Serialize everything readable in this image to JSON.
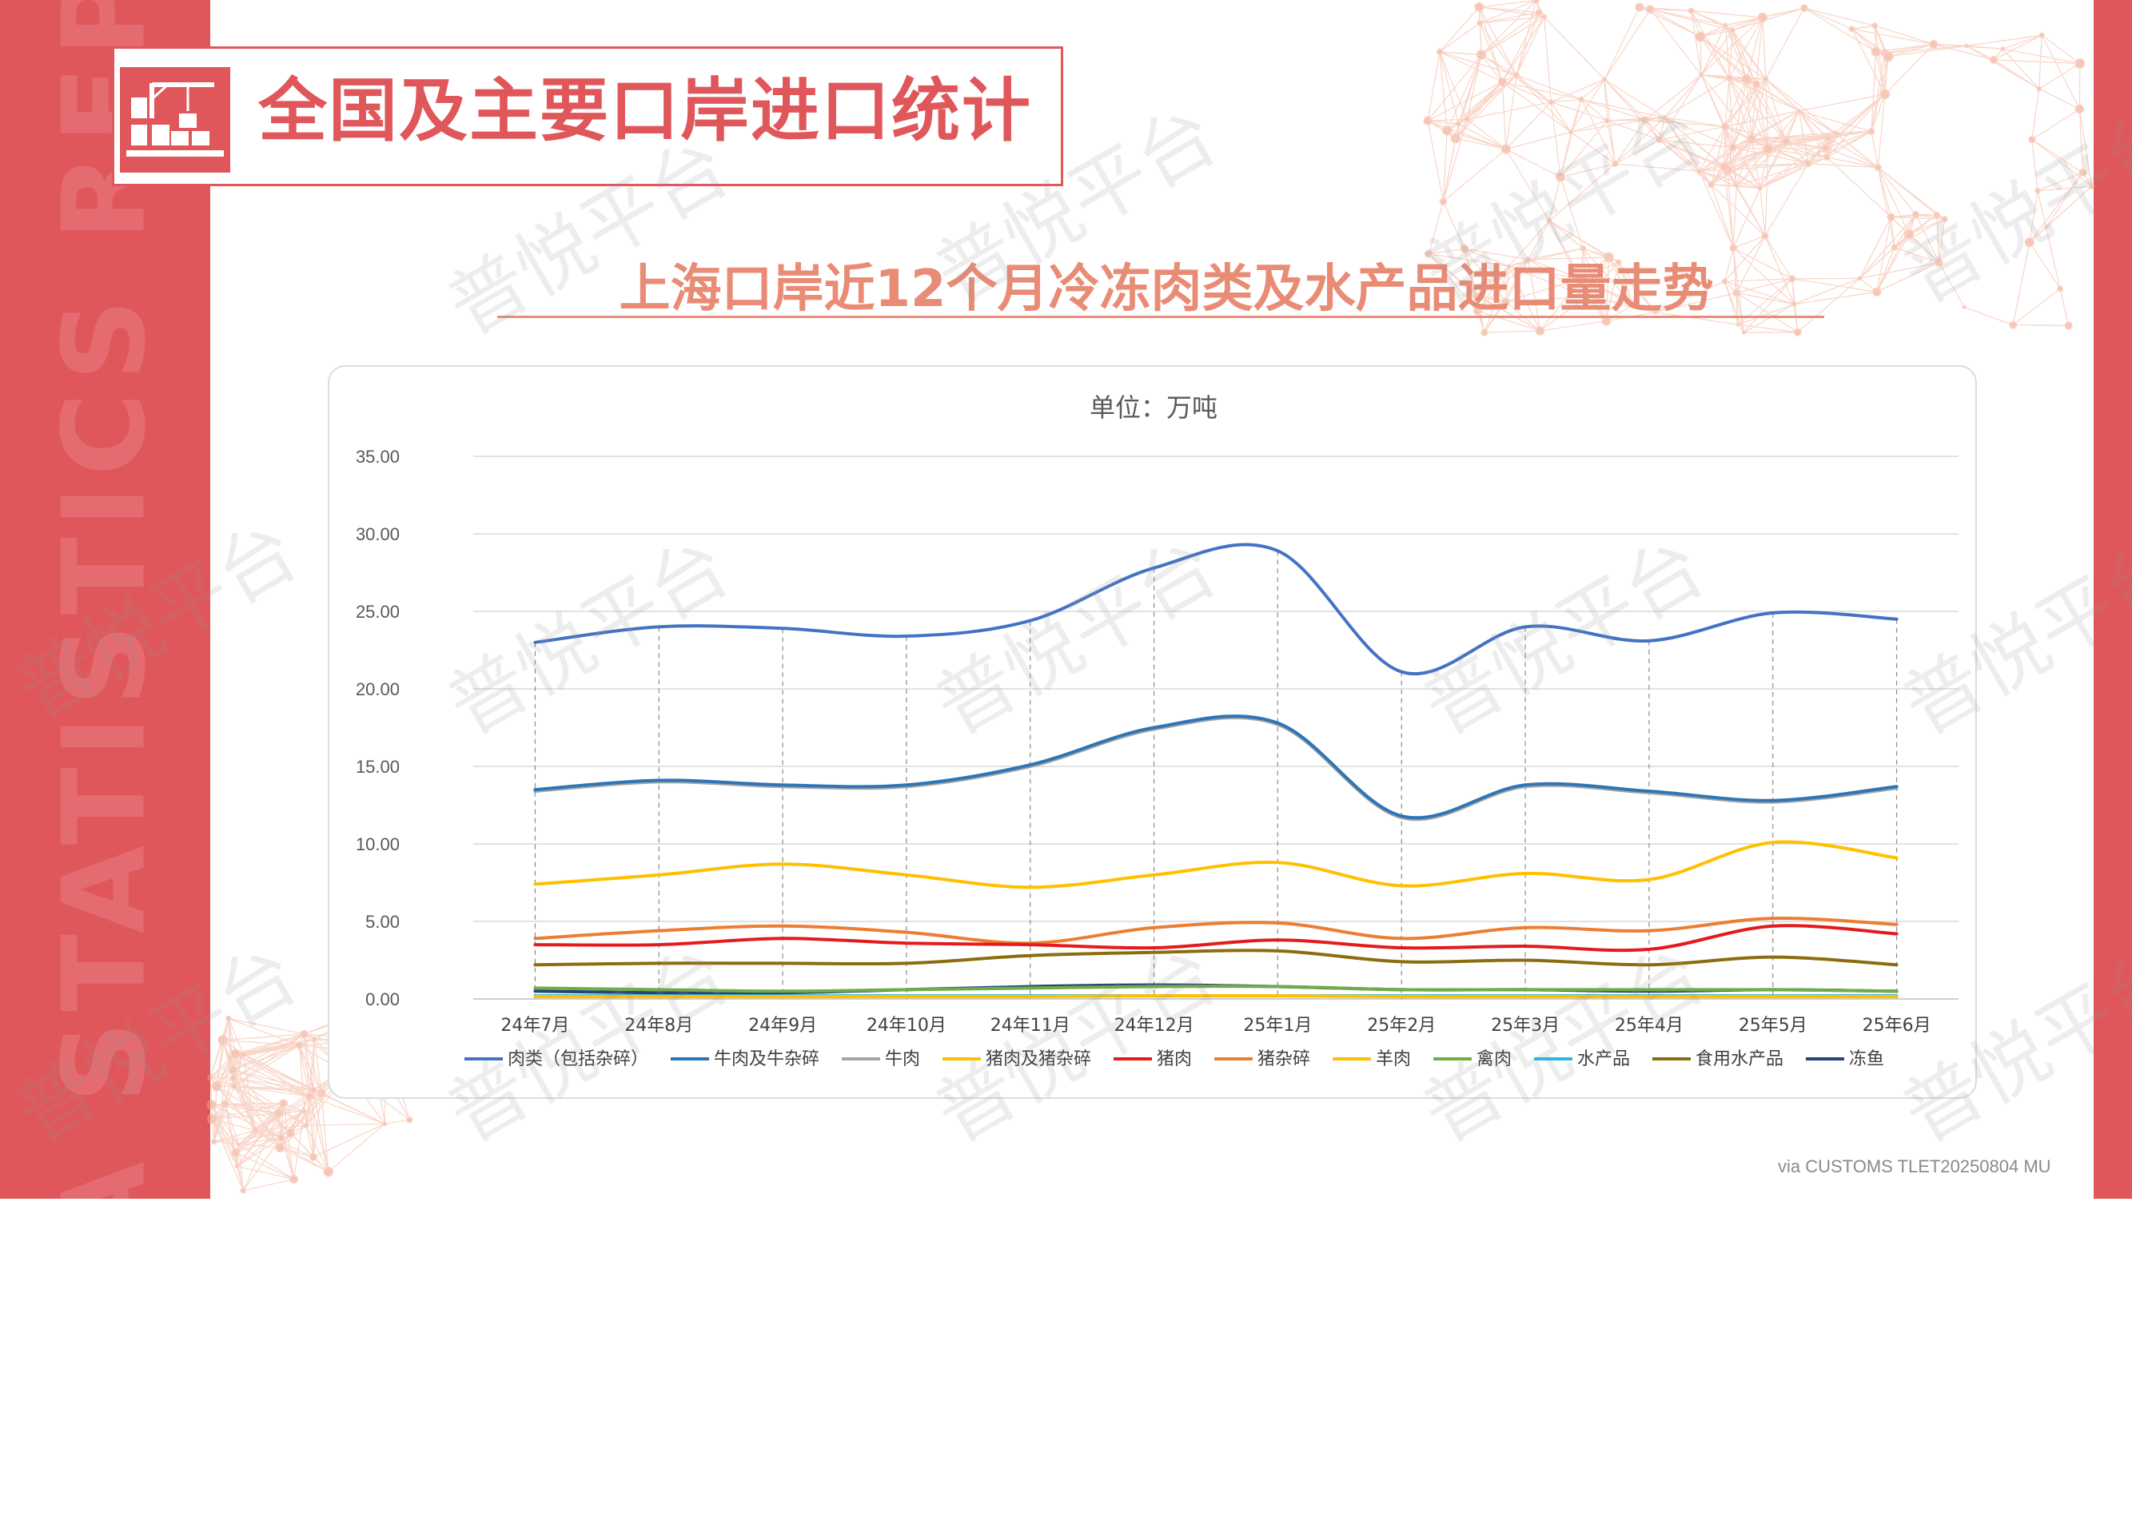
{
  "page": {
    "side_banner": "DATA STATISTICS REPORT",
    "header_title": "全国及主要口岸进口统计",
    "subtitle": "上海口岸近12个月冷冻肉类及水产品进口量走势",
    "watermark": "普悦平台",
    "source_note": "via CUSTOMS TLET20250804 MU",
    "icon": "warehouse-crane-icon"
  },
  "colors": {
    "accent": "#e0575b",
    "subtitle": "#e98c76",
    "grid": "#d9d9d9",
    "axis_text": "#595959"
  },
  "chart_data": {
    "type": "line",
    "smooth": true,
    "title": "单位：万吨",
    "xlabel": "",
    "ylabel": "",
    "ylim": [
      0,
      35
    ],
    "yticks": [
      "0.00",
      "5.00",
      "10.00",
      "15.00",
      "20.00",
      "25.00",
      "30.00",
      "35.00"
    ],
    "categories": [
      "24年7月",
      "24年8月",
      "24年9月",
      "24年10月",
      "24年11月",
      "24年12月",
      "25年1月",
      "25年2月",
      "25年3月",
      "25年4月",
      "25年5月",
      "25年6月"
    ],
    "grid": true,
    "vertical_drop_lines": true,
    "legend_position": "bottom",
    "series": [
      {
        "name": "肉类（包括杂碎）",
        "color": "#4472c4",
        "values": [
          23.0,
          24.0,
          23.9,
          23.4,
          24.4,
          27.8,
          28.9,
          21.1,
          24.0,
          23.1,
          24.9,
          24.5
        ]
      },
      {
        "name": "牛肉及牛杂碎",
        "color": "#2e75b6",
        "values": [
          13.5,
          14.1,
          13.8,
          13.8,
          15.1,
          17.5,
          17.8,
          11.8,
          13.8,
          13.4,
          12.8,
          13.7
        ]
      },
      {
        "name": "牛肉",
        "color": "#a5a5a5",
        "values": [
          13.4,
          14.0,
          13.7,
          13.7,
          15.0,
          17.4,
          17.7,
          11.7,
          13.7,
          13.3,
          12.7,
          13.6
        ]
      },
      {
        "name": "猪肉及猪杂碎",
        "color": "#ffc000",
        "values": [
          7.4,
          8.0,
          8.7,
          8.0,
          7.2,
          8.0,
          8.8,
          7.3,
          8.1,
          7.7,
          10.1,
          9.1
        ]
      },
      {
        "name": "猪肉",
        "color": "#e41a1c",
        "values": [
          3.5,
          3.5,
          3.9,
          3.6,
          3.5,
          3.3,
          3.8,
          3.3,
          3.4,
          3.2,
          4.7,
          4.2
        ]
      },
      {
        "name": "猪杂碎",
        "color": "#ed7d31",
        "values": [
          3.9,
          4.4,
          4.7,
          4.3,
          3.6,
          4.6,
          4.9,
          3.9,
          4.6,
          4.4,
          5.2,
          4.8
        ]
      },
      {
        "name": "羊肉",
        "color": "#ffc000",
        "values": [
          0.15,
          0.15,
          0.15,
          0.15,
          0.15,
          0.2,
          0.2,
          0.15,
          0.15,
          0.15,
          0.15,
          0.15
        ]
      },
      {
        "name": "禽肉",
        "color": "#70ad47",
        "values": [
          0.7,
          0.6,
          0.5,
          0.6,
          0.7,
          0.8,
          0.8,
          0.6,
          0.6,
          0.6,
          0.6,
          0.5
        ]
      },
      {
        "name": "水产品",
        "color": "#29b6e8",
        "values": [
          0.2,
          0.2,
          0.2,
          0.2,
          0.2,
          0.2,
          0.2,
          0.2,
          0.2,
          0.2,
          0.2,
          0.2
        ]
      },
      {
        "name": "食用水产品",
        "color": "#8b6d0f",
        "values": [
          2.2,
          2.3,
          2.3,
          2.3,
          2.8,
          3.0,
          3.1,
          2.4,
          2.5,
          2.2,
          2.7,
          2.2
        ]
      },
      {
        "name": "冻鱼",
        "color": "#264478",
        "values": [
          0.5,
          0.4,
          0.4,
          0.6,
          0.8,
          0.9,
          0.8,
          0.6,
          0.6,
          0.5,
          0.6,
          0.5
        ]
      }
    ]
  }
}
